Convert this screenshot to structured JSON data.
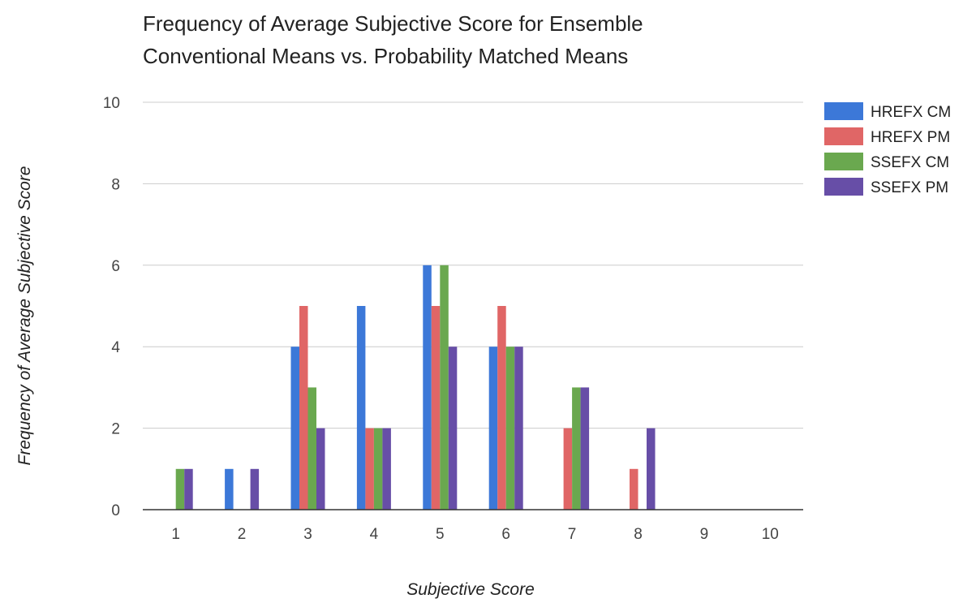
{
  "chart_data": {
    "type": "bar",
    "title_lines": [
      "Frequency of Average Subjective Score for Ensemble",
      "Conventional Means vs. Probability Matched Means"
    ],
    "xlabel": "Subjective Score",
    "ylabel": "Frequency of Average Subjective Score",
    "categories": [
      "1",
      "2",
      "3",
      "4",
      "5",
      "6",
      "7",
      "8",
      "9",
      "10"
    ],
    "ylim": [
      0,
      10
    ],
    "yticks": [
      0,
      2,
      4,
      6,
      8,
      10
    ],
    "grid": true,
    "legend_position": "right",
    "series": [
      {
        "name": "HREFX CM",
        "color": "#3c78d8",
        "values": [
          0,
          1,
          4,
          5,
          6,
          4,
          0,
          0,
          0,
          0
        ]
      },
      {
        "name": "HREFX PM",
        "color": "#e06666",
        "values": [
          0,
          0,
          5,
          2,
          5,
          5,
          2,
          1,
          0,
          0
        ]
      },
      {
        "name": "SSEFX CM",
        "color": "#6aa84f",
        "values": [
          1,
          0,
          3,
          2,
          6,
          4,
          3,
          0,
          0,
          0
        ]
      },
      {
        "name": "SSEFX PM",
        "color": "#674ea7",
        "values": [
          1,
          1,
          2,
          2,
          4,
          4,
          3,
          2,
          0,
          0
        ]
      }
    ]
  }
}
